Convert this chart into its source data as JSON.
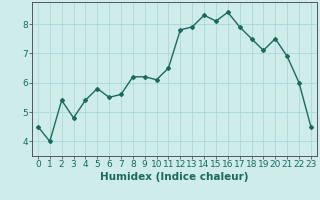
{
  "x": [
    0,
    1,
    2,
    3,
    4,
    5,
    6,
    7,
    8,
    9,
    10,
    11,
    12,
    13,
    14,
    15,
    16,
    17,
    18,
    19,
    20,
    21,
    22,
    23
  ],
  "y": [
    4.5,
    4.0,
    5.4,
    4.8,
    5.4,
    5.8,
    5.5,
    5.6,
    6.2,
    6.2,
    6.1,
    6.5,
    7.8,
    7.9,
    8.3,
    8.1,
    8.4,
    7.9,
    7.5,
    7.1,
    7.5,
    6.9,
    6.0,
    4.5
  ],
  "line_color": "#1a6b5a",
  "marker": "D",
  "marker_size": 2.0,
  "linewidth": 1.0,
  "background_color": "#ceecea",
  "grid_color": "#aed8d5",
  "xlabel": "Humidex (Indice chaleur)",
  "xlabel_fontsize": 7.5,
  "xlim": [
    -0.5,
    23.5
  ],
  "ylim": [
    3.5,
    8.75
  ],
  "yticks": [
    4,
    5,
    6,
    7,
    8
  ],
  "xtick_labels": [
    "0",
    "1",
    "2",
    "3",
    "4",
    "5",
    "6",
    "7",
    "8",
    "9",
    "10",
    "11",
    "12",
    "13",
    "14",
    "15",
    "16",
    "17",
    "18",
    "19",
    "20",
    "21",
    "22",
    "23"
  ],
  "tick_fontsize": 6.5,
  "spine_color": "#555555"
}
